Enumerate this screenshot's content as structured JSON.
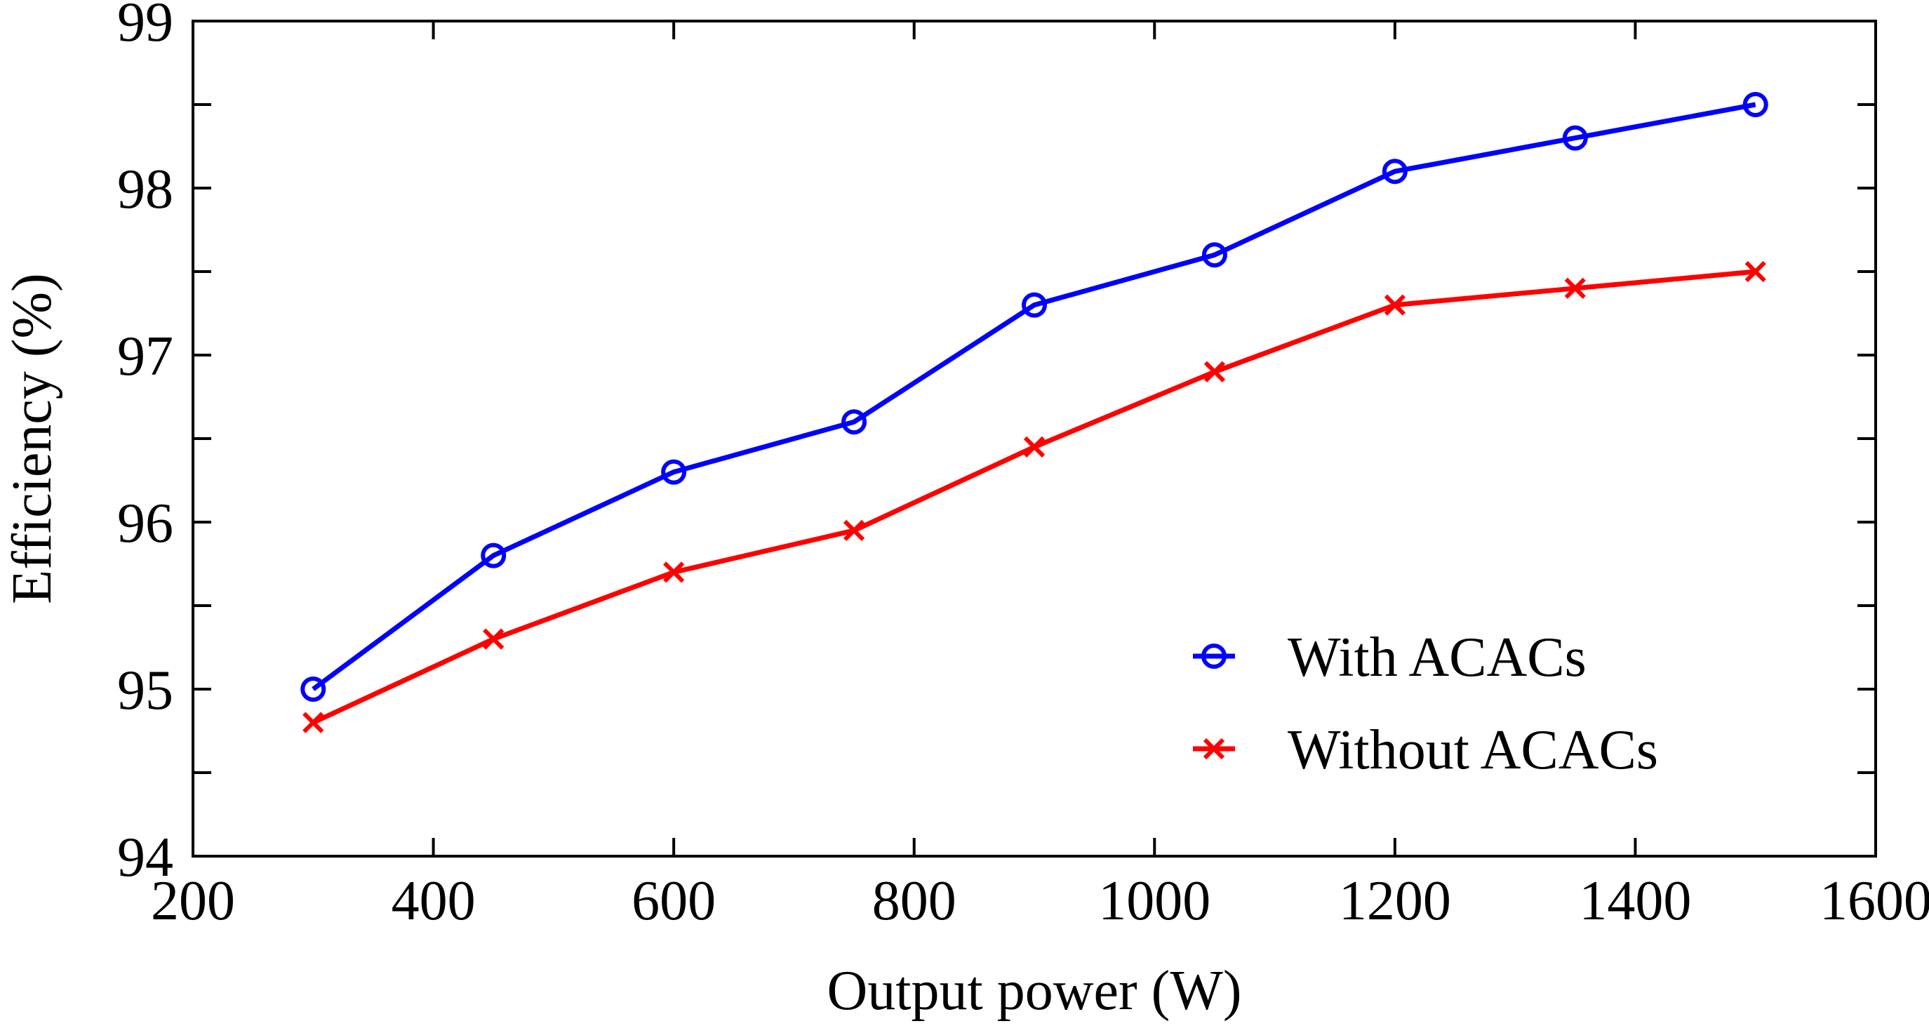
{
  "chart_data": {
    "type": "line",
    "title": "",
    "xlabel": "Output power  (W)",
    "ylabel": "Efficiency  (%)",
    "xlim": [
      200,
      1600
    ],
    "ylim": [
      94,
      99
    ],
    "x_ticks": [
      "200",
      "400",
      "600",
      "800",
      "1000",
      "1200",
      "1400",
      "1600"
    ],
    "y_ticks": [
      "94",
      "95",
      "96",
      "97",
      "98",
      "99"
    ],
    "grid": false,
    "legend_position": "bottom-right",
    "x": [
      300,
      450,
      600,
      750,
      900,
      1050,
      1200,
      1350,
      1500
    ],
    "series": [
      {
        "name": "With ACACs",
        "marker": "circle",
        "color": "#0000ff",
        "values": [
          95.0,
          95.8,
          96.3,
          96.6,
          97.3,
          97.6,
          98.1,
          98.3,
          98.5
        ]
      },
      {
        "name": "Without ACACs",
        "marker": "x",
        "color": "#ff0000",
        "values": [
          94.8,
          95.3,
          95.7,
          95.95,
          96.45,
          96.9,
          97.3,
          97.4,
          97.5
        ]
      }
    ]
  }
}
